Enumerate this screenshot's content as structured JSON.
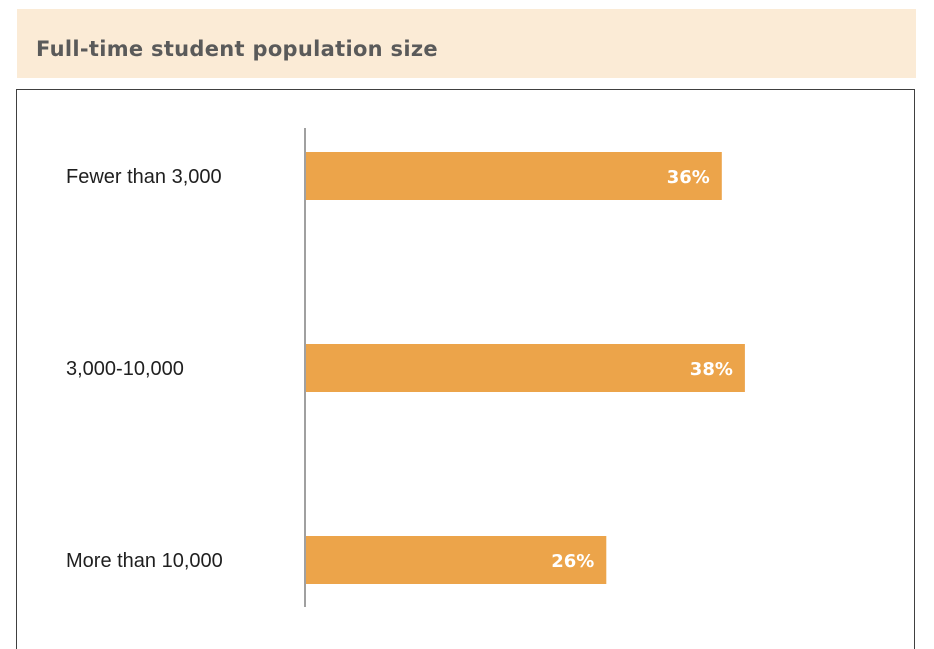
{
  "header": {
    "title": "Full-time student population size"
  },
  "colors": {
    "bar": "#eca44a",
    "header_bg": "#fbebd6",
    "label_text": "#1f1f1f",
    "value_text": "#ffffff",
    "axis": "#404040"
  },
  "chart_data": {
    "type": "bar",
    "orientation": "horizontal",
    "categories": [
      "Fewer than 3,000",
      "3,000-10,000",
      "More than 10,000"
    ],
    "values": [
      36,
      38,
      26
    ],
    "value_labels": [
      "36%",
      "38%",
      "26%"
    ],
    "unit": "%",
    "title": "Full-time student population size",
    "xlim": [
      0,
      50
    ],
    "grid": false,
    "legend": "none"
  }
}
